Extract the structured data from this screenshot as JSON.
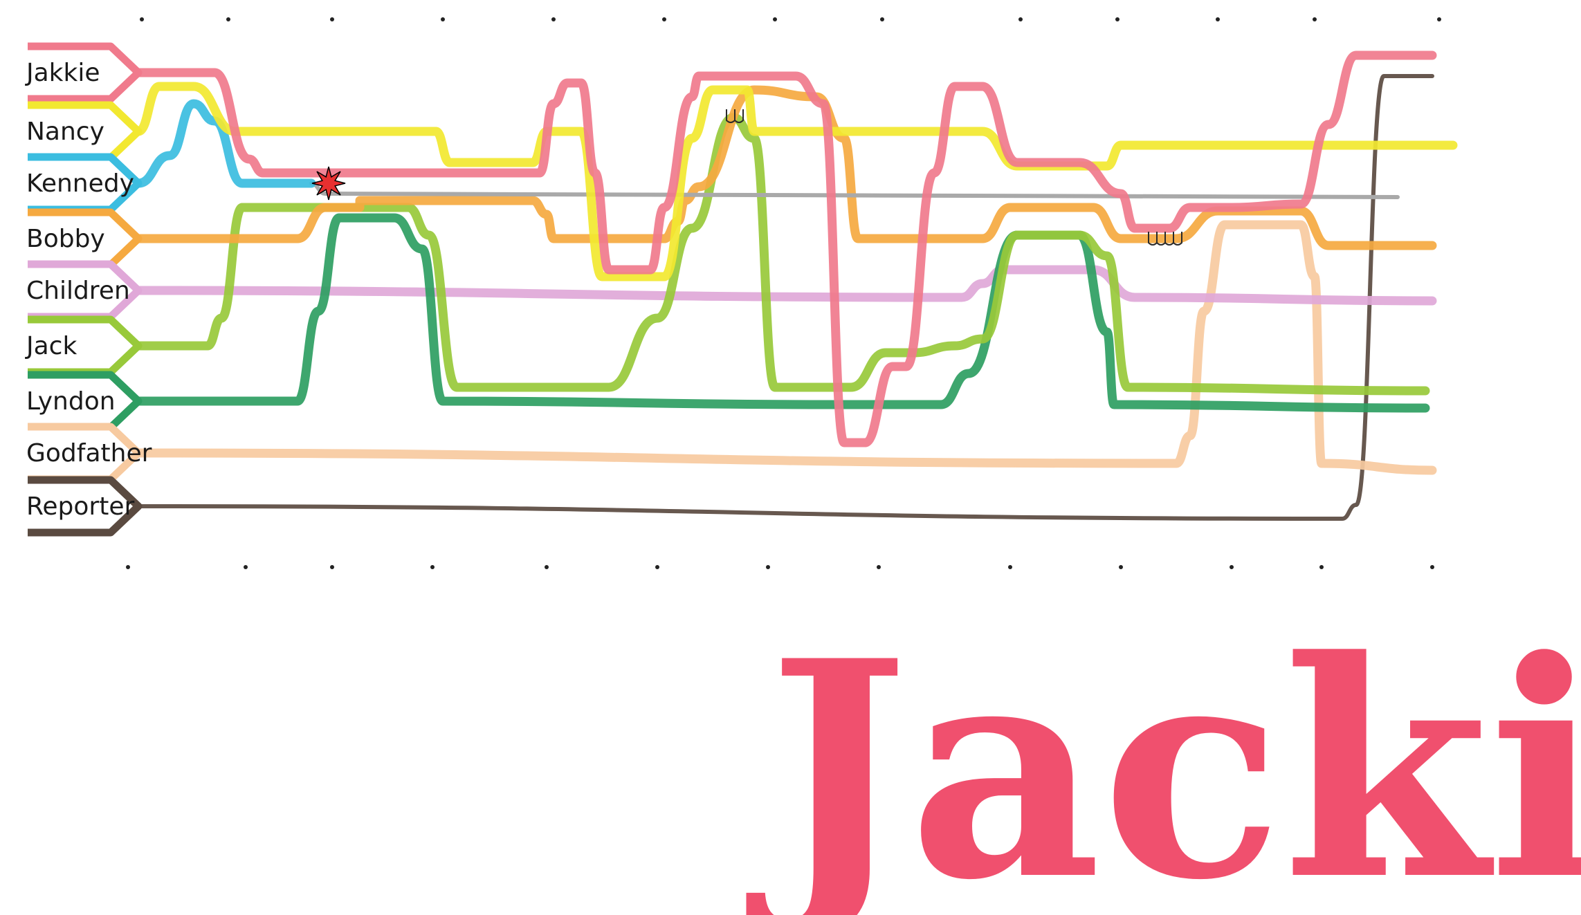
{
  "title": "Jackie",
  "title_color": "#f0506e",
  "characters": [
    {
      "id": "jakkie",
      "label": "Jakkie",
      "color": "#f07a8c"
    },
    {
      "id": "nancy",
      "label": "Nancy",
      "color": "#f2e830"
    },
    {
      "id": "kennedy",
      "label": "Kennedy",
      "color": "#3bbde0",
      "after_death_color": "#a9a9a9"
    },
    {
      "id": "bobby",
      "label": "Bobby",
      "color": "#f5a940"
    },
    {
      "id": "children",
      "label": "Children",
      "color": "#e0a8d8"
    },
    {
      "id": "jack",
      "label": "Jack",
      "color": "#98c93a"
    },
    {
      "id": "lyndon",
      "label": "Lyndon",
      "color": "#2e9e62"
    },
    {
      "id": "godfather",
      "label": "Godfather",
      "color": "#f7caa0"
    },
    {
      "id": "reporter",
      "label": "Reporter",
      "color": "#5a4a40"
    }
  ],
  "annotations": [
    {
      "id": "death-mark",
      "icon": "explosion-icon",
      "text": "",
      "color": "#e83030"
    },
    {
      "id": "tears-1",
      "icon": "tears-icon",
      "text": "ꟺ",
      "color": "#2a2a2a"
    },
    {
      "id": "tears-2",
      "icon": "tears-icon",
      "text": "ꟺ",
      "color": "#2a2a2a"
    }
  ]
}
